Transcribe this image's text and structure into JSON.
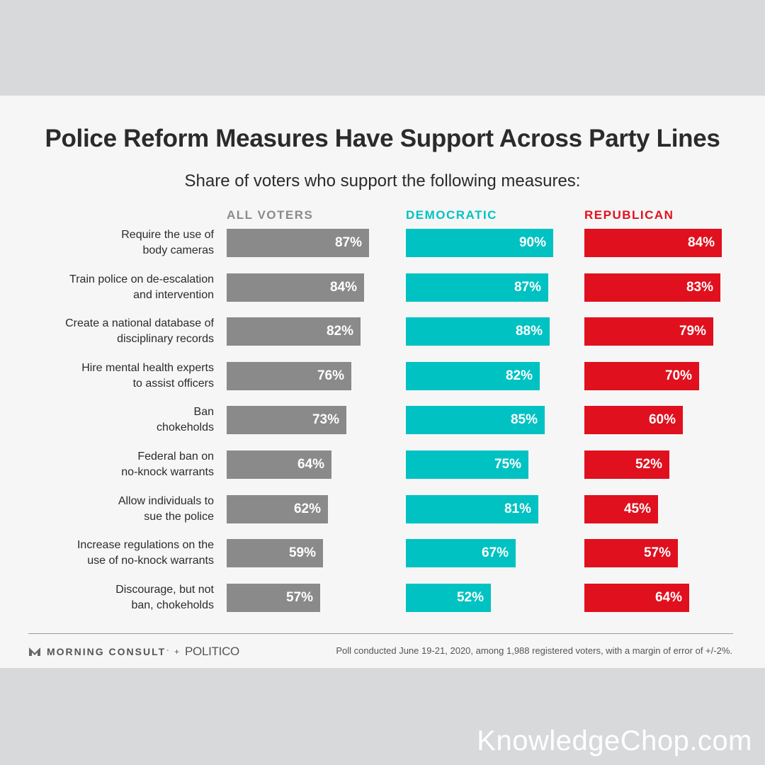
{
  "title": "Police Reform Measures Have Support Across Party Lines",
  "subtitle": "Share of voters who support the following measures:",
  "chart_data": {
    "type": "bar",
    "orientation": "horizontal",
    "title": "Police Reform Measures Have Support Across Party Lines",
    "subtitle": "Share of voters who support the following measures:",
    "value_suffix": "%",
    "xlim": [
      0,
      100
    ],
    "categories": [
      [
        "Require the use of",
        "body cameras"
      ],
      [
        "Train police on de-escalation",
        "and intervention"
      ],
      [
        "Create a national database of",
        "disciplinary records"
      ],
      [
        "Hire mental health experts",
        "to assist officers"
      ],
      [
        "Ban",
        "chokeholds"
      ],
      [
        "Federal ban on",
        "no-knock warrants"
      ],
      [
        "Allow individuals to",
        "sue the police"
      ],
      [
        "Increase regulations on the",
        "use of no-knock warrants"
      ],
      [
        "Discourage, but not",
        "ban, chokeholds"
      ]
    ],
    "series": [
      {
        "name": "ALL VOTERS",
        "color": "#8a8a8a",
        "values": [
          87,
          84,
          82,
          76,
          73,
          64,
          62,
          59,
          57
        ]
      },
      {
        "name": "DEMOCRATIC",
        "color": "#00c2c2",
        "values": [
          90,
          87,
          88,
          82,
          85,
          75,
          81,
          67,
          52
        ]
      },
      {
        "name": "REPUBLICAN",
        "color": "#e0101e",
        "values": [
          84,
          83,
          79,
          70,
          60,
          52,
          45,
          57,
          64
        ]
      }
    ]
  },
  "footer": {
    "brand_name": "MORNING CONSULT",
    "trademark": "°",
    "plus": "+",
    "partner": "POLITICO",
    "note": "Poll conducted June 19-21, 2020, among 1,988 registered voters, with a margin of error of +/-2%."
  },
  "watermark": "KnowledgeChop.com"
}
